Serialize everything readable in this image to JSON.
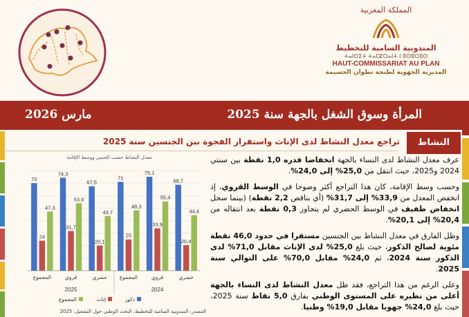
{
  "header": {
    "kingdom": "المملكة المغربية",
    "hcp_ar": "المندوبية السامية للتخطيط",
    "tifinagh": "ⵜⴰⵏⵙⵉⵜ ⵜⴰⵎⵇⵔⴰⵏⵜ ⵏ ⵓⵙⵓⵔⵓⵙ",
    "hcp_fr": "HAUT-COMMISSARIAT AU PLAN",
    "direction": "المديرية الجهوية لطنجة تطوان الحسيمة"
  },
  "title_bar": {
    "title": "المرأة وسوق الشغل بالجهة سنة 2025",
    "date": "مارس 2026"
  },
  "section": {
    "tag": "النشاط",
    "subtitle": "تراجع معدل النشاط لدى الإناث واستقرار الفجوة بين الجنسين سنة 2025"
  },
  "colors": {
    "male": "#4472c4",
    "female": "#c0504d",
    "total": "#9bbb59",
    "brand_red": "#a32b20"
  },
  "chart_data": {
    "type": "bar",
    "title": "معدل النشاط حسب الجنس ووسط الإقامة",
    "groups": [
      {
        "year": "2025",
        "categories": [
          "المجموع",
          "قروي",
          "حضري"
        ]
      },
      {
        "year": "2024",
        "categories": [
          "المجموع",
          "قروي",
          "حضري"
        ]
      }
    ],
    "series": [
      {
        "name": "ذكور",
        "values": [
          70,
          74.3,
          67.5,
          71,
          75.1,
          68.7
        ]
      },
      {
        "name": "إناث",
        "values": [
          24,
          31.7,
          20.1,
          25,
          33.9,
          20.4
        ]
      },
      {
        "name": "المجموع",
        "values": [
          47.3,
          53.9,
          43.7,
          48.3,
          55.4,
          44.4
        ]
      }
    ],
    "value_labels": [
      [
        "70",
        "74,3",
        "67,5",
        "71",
        "75,1",
        "68,7"
      ],
      [
        "24",
        "31,7",
        "20,1",
        "25",
        "33,9",
        "20,4"
      ],
      [
        "47,3",
        "53,9",
        "43,7",
        "48,3",
        "55,4",
        "44,4"
      ]
    ],
    "ylim": [
      0,
      85
    ],
    "grid": true,
    "legend_placement": "bottom",
    "source": "المصدر: المندوبية السامية للتخطيط، البحث الوطني حول التشغيل، 2025"
  },
  "text": {
    "p1": [
      "عرف معدل النشاط لدى النساء بالجهة ",
      "انخفاضا قدره 1,0 نقطة",
      " بين سنتي 2024 و2025، حيث انتقل من ",
      "25,0% إلى 24,0%",
      "."
    ],
    "p2": [
      "وحسب وسط الإقامة، كان هذا التراجع أكثر وضوحا في ",
      "الوسط القروي",
      "، إذ انخفض المعدل من ",
      "33,9% إلى 31,7%",
      " (أي بناقص ",
      "2,2 نقطة",
      ") (بينما سجل ",
      "انخفاض طفيف",
      " في الوسط الحضري لم يتجاوز ",
      "0,3 نقطة",
      " بعد انتقاله من ",
      "20,4% إلى 20,1%",
      "."
    ],
    "p3": [
      "وظل الفارق في معدل النشاط بين الجنسين ",
      "مستقرا في حدود 46,0 نقطة مئوية لصالح الذكور",
      "، حيث بلغ ",
      "25,0% لدى الإناث مقابل 71,0% لدى الذكور سنة 2024",
      "، ثم ",
      "24,0% مقابل 70,0% على التوالي سنة 2025",
      "."
    ],
    "p4": [
      "وعلى الرغم من هذا التراجع، فقد ظل ",
      "معدل النشاط لدى النساء بالجهة أعلى من نظيره على المستوى الوطني",
      " بفارق ",
      "5,0 نقاط",
      " سنة 2025، حيث بلغ ",
      "24,0% جهويا مقابل 19,0% وطنيا",
      "."
    ]
  }
}
